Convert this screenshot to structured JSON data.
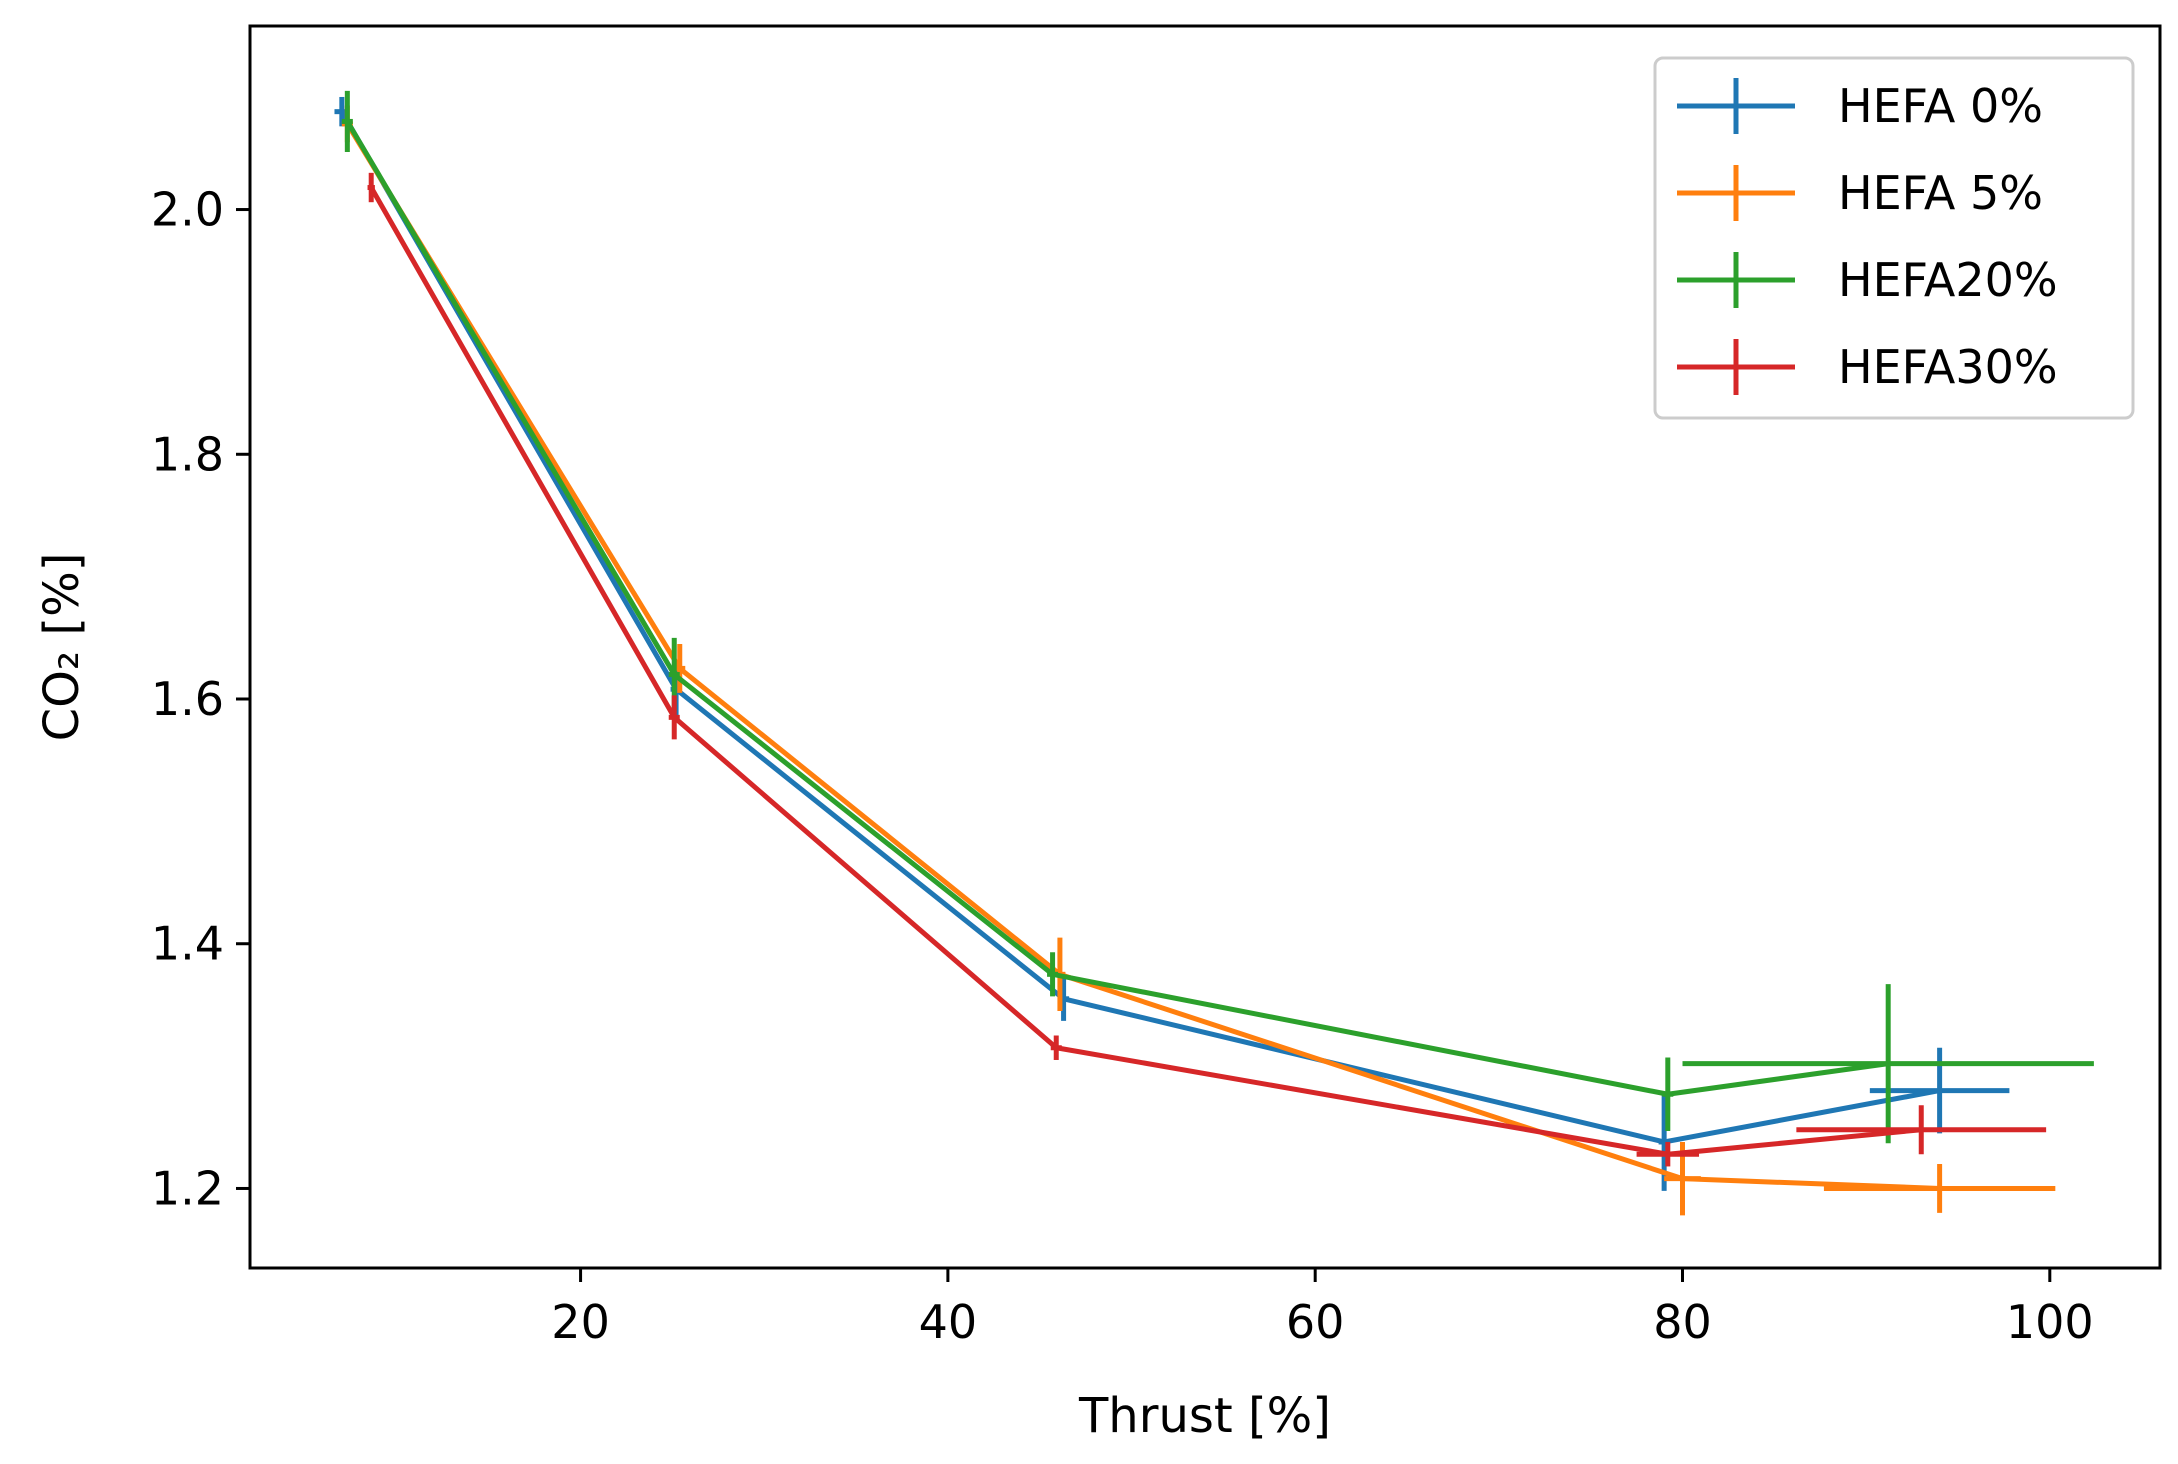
{
  "chart_data": {
    "type": "line",
    "title": "",
    "xlabel": "Thrust [%]",
    "ylabel": "CO₂ [%]",
    "xlim": [
      2,
      106
    ],
    "ylim": [
      1.135,
      2.15
    ],
    "xticks": [
      20,
      40,
      60,
      80,
      100
    ],
    "yticks": [
      1.2,
      1.4,
      1.6,
      1.8,
      2.0
    ],
    "xtick_labels": [
      "20",
      "40",
      "60",
      "80",
      "100"
    ],
    "ytick_labels": [
      "1.2",
      "1.4",
      "1.6",
      "1.8",
      "2.0"
    ],
    "grid": false,
    "legend_position": "top-right",
    "series": [
      {
        "name": "HEFA 0%",
        "color": "#1f77b4",
        "x": [
          7.0,
          25.2,
          46.3,
          79.0,
          94.0
        ],
        "y": [
          2.08,
          1.608,
          1.355,
          1.238,
          1.28
        ],
        "xerr": [
          0.4,
          0.3,
          0.3,
          0.3,
          3.8
        ],
        "yerr": [
          0.012,
          0.022,
          0.018,
          0.04,
          0.035
        ]
      },
      {
        "name": "HEFA 5%",
        "color": "#ff7f0e",
        "x": [
          7.3,
          25.4,
          46.1,
          80.0,
          94.0
        ],
        "y": [
          2.07,
          1.625,
          1.375,
          1.208,
          1.2
        ],
        "xerr": [
          0.3,
          0.3,
          0.3,
          1.0,
          6.3
        ],
        "yerr": [
          0.015,
          0.02,
          0.03,
          0.03,
          0.02
        ]
      },
      {
        "name": "HEFA20%",
        "color": "#2ca02c",
        "x": [
          7.3,
          25.1,
          45.7,
          79.2,
          91.2
        ],
        "y": [
          2.072,
          1.62,
          1.375,
          1.277,
          1.302
        ],
        "xerr": [
          0.3,
          0.3,
          0.3,
          0.3,
          11.2
        ],
        "yerr": [
          0.025,
          0.03,
          0.018,
          0.03,
          0.065
        ]
      },
      {
        "name": "HEFA30%",
        "color": "#d62728",
        "x": [
          8.6,
          25.1,
          45.9,
          79.2,
          93.0
        ],
        "y": [
          2.018,
          1.585,
          1.315,
          1.228,
          1.248
        ],
        "xerr": [
          0.2,
          0.3,
          0.3,
          1.7,
          6.8
        ],
        "yerr": [
          0.012,
          0.018,
          0.01,
          0.01,
          0.02
        ]
      }
    ]
  }
}
